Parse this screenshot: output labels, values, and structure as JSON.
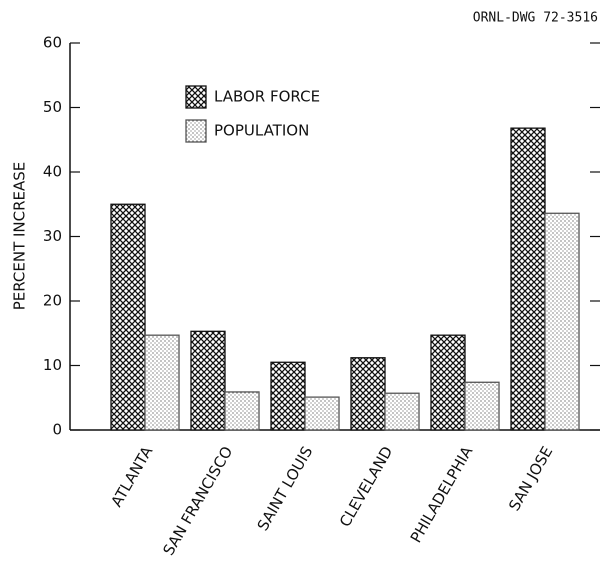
{
  "chart_data": {
    "type": "bar",
    "annotation": "ORNL-DWG 72-3516",
    "ylabel": "PERCENT INCREASE",
    "categories": [
      "ATLANTA",
      "SAN FRANCISCO",
      "SAINT LOUIS",
      "CLEVELAND",
      "PHILADELPHIA",
      "SAN JOSE"
    ],
    "series": [
      {
        "name": "LABOR FORCE",
        "color": "#111111",
        "values": [
          35,
          15.3,
          10.5,
          11.2,
          14.7,
          46.8
        ]
      },
      {
        "name": "POPULATION",
        "color": "#555555",
        "values": [
          14.7,
          5.9,
          5.1,
          5.7,
          7.4,
          33.6
        ]
      }
    ],
    "ylim": [
      0,
      60
    ],
    "yticks": [
      0,
      10,
      20,
      30,
      40,
      50,
      60
    ]
  }
}
